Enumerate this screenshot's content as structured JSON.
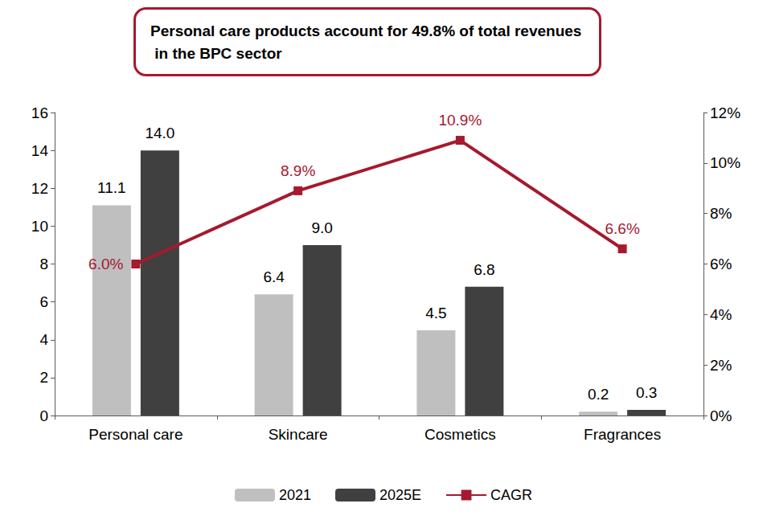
{
  "chart_data": {
    "type": "bar",
    "title": "Personal care products account for 49.8% of total revenues in the BPC sector",
    "categories": [
      "Personal care",
      "Skincare",
      "Cosmetics",
      "Fragrances"
    ],
    "series": [
      {
        "name": "2021",
        "type": "bar",
        "color": "#bfbfbf",
        "values": [
          11.1,
          6.4,
          4.5,
          0.2
        ],
        "value_labels": [
          "11.1",
          "6.4",
          "4.5",
          "0.2"
        ]
      },
      {
        "name": "2025E",
        "type": "bar",
        "color": "#404040",
        "values": [
          14.0,
          9.0,
          6.8,
          0.3
        ],
        "value_labels": [
          "14.0",
          "9.0",
          "6.8",
          "0.3"
        ]
      },
      {
        "name": "CAGR",
        "type": "line",
        "axis": "y2",
        "color": "#a6192e",
        "marker": "square",
        "values": [
          6.0,
          8.9,
          10.9,
          6.6
        ],
        "value_labels": [
          "6.0%",
          "8.9%",
          "10.9%",
          "6.6%"
        ]
      }
    ],
    "ylim": [
      0,
      16
    ],
    "yticks": [
      0,
      2,
      4,
      6,
      8,
      10,
      12,
      14,
      16
    ],
    "y2lim": [
      0,
      12
    ],
    "y2ticks": [
      {
        "value": 0,
        "label": "0%"
      },
      {
        "value": 2,
        "label": "2%"
      },
      {
        "value": 4,
        "label": "4%"
      },
      {
        "value": 6,
        "label": "6%"
      },
      {
        "value": 8,
        "label": "8%"
      },
      {
        "value": 10,
        "label": "10%"
      },
      {
        "value": 12,
        "label": "12%"
      }
    ],
    "grid": false,
    "legend": "bottom",
    "data_labels": true
  }
}
